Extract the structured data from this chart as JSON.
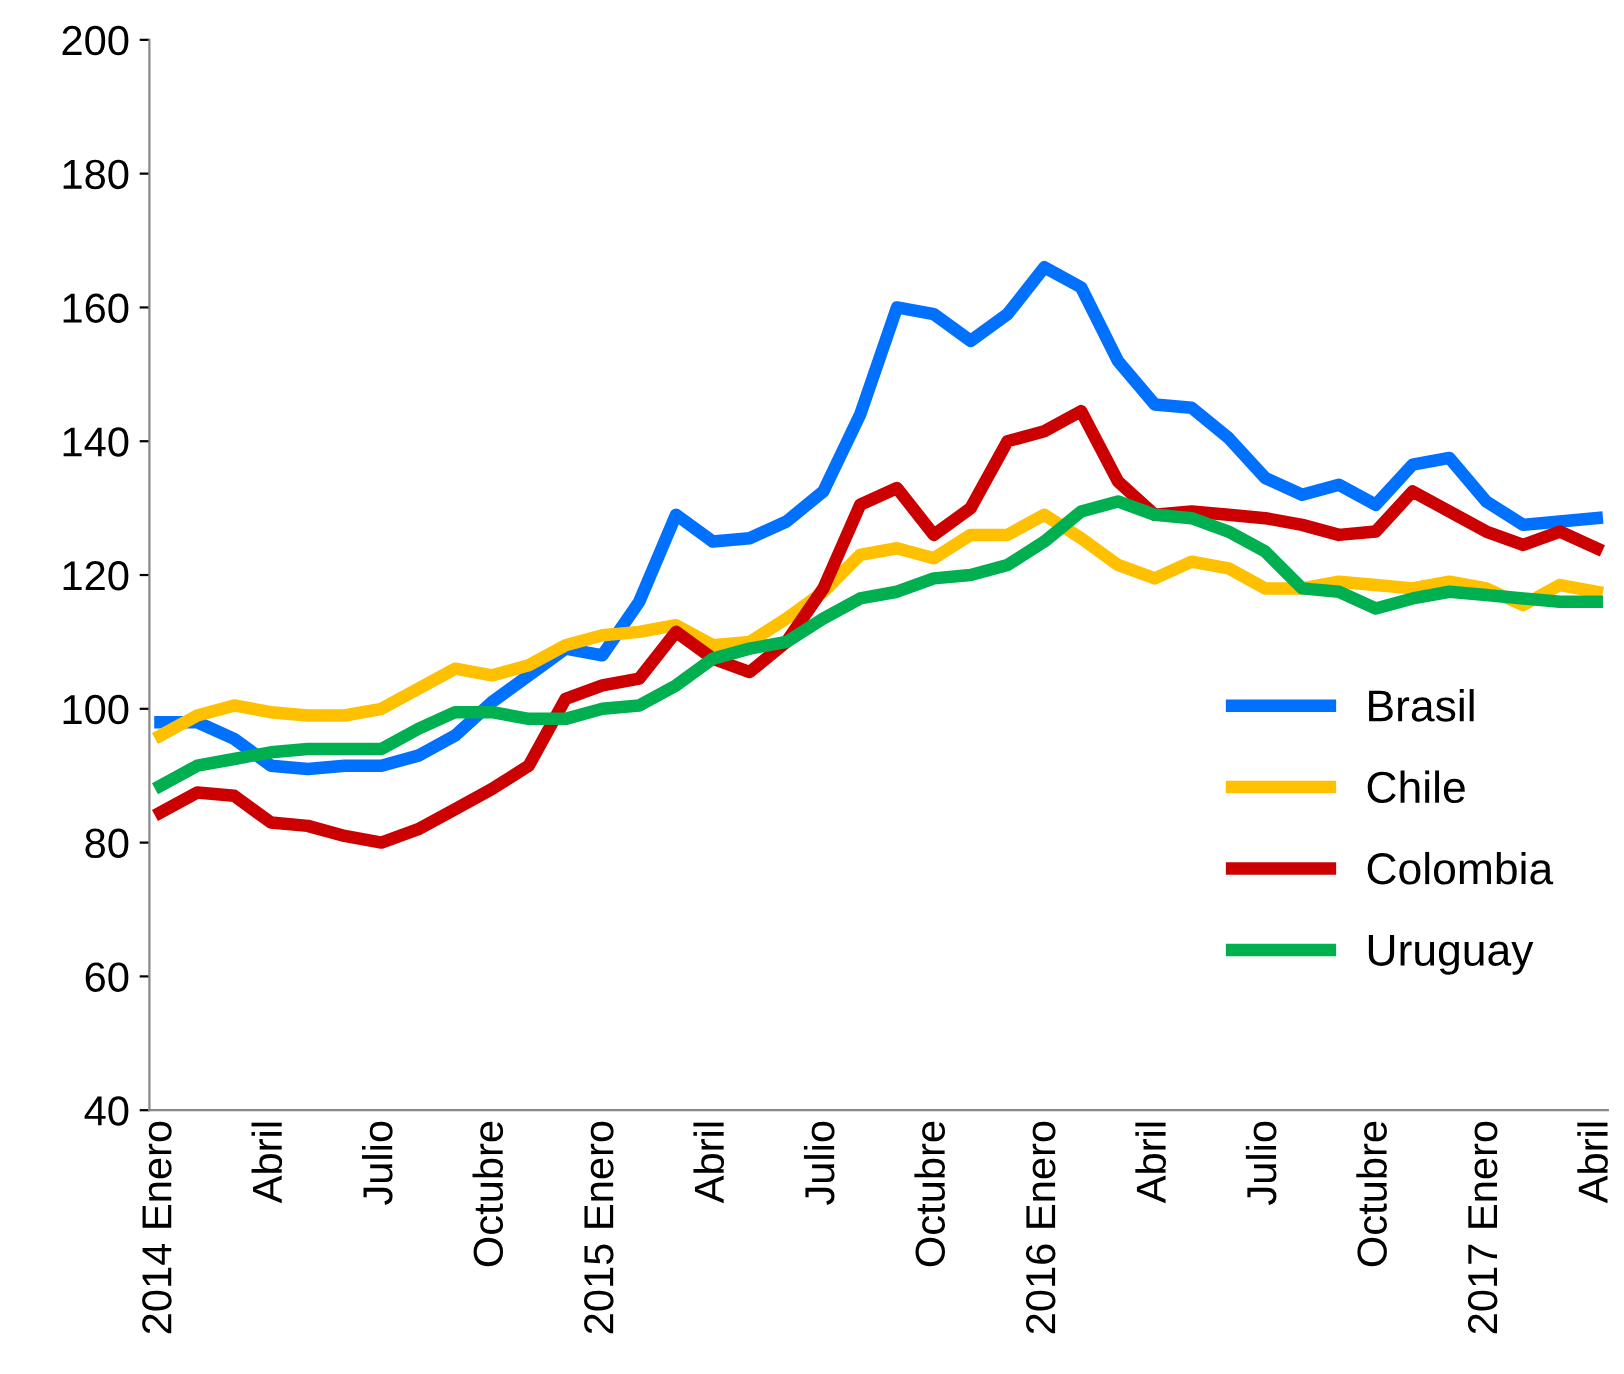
{
  "chart_data": {
    "type": "line",
    "categories": [
      "2014 Enero",
      null,
      null,
      "Abril",
      null,
      null,
      "Julio",
      null,
      null,
      "Octubre",
      null,
      null,
      "2015 Enero",
      null,
      null,
      "Abril",
      null,
      null,
      "Julio",
      null,
      null,
      "Octubre",
      null,
      null,
      "2016 Enero",
      null,
      null,
      "Abril",
      null,
      null,
      "Julio",
      null,
      null,
      "Octubre",
      null,
      null,
      "2017 Enero",
      null,
      null,
      "Abril"
    ],
    "ylim": [
      40,
      200
    ],
    "yticks": [
      40,
      60,
      80,
      100,
      120,
      140,
      160,
      180,
      200
    ],
    "grid": false,
    "legend": "right",
    "marker": "none",
    "line_style": "solid",
    "series": [
      {
        "name": "Brasil",
        "color": "#0070ff",
        "values": [
          98,
          98,
          95.5,
          91.5,
          91,
          91.5,
          91.5,
          93,
          96,
          101,
          105,
          109,
          108,
          116,
          129,
          125,
          125.5,
          128,
          132.5,
          144,
          160,
          159,
          155,
          159,
          166,
          163,
          152,
          145.5,
          145,
          140.5,
          134.5,
          132,
          133.5,
          130.5,
          136.5,
          137.5,
          131,
          127.5,
          128,
          128.5
        ]
      },
      {
        "name": "Chile",
        "color": "#ffc000",
        "values": [
          96,
          99,
          100.5,
          99.5,
          99,
          99,
          100,
          103,
          106,
          105,
          106.5,
          109.5,
          111,
          111.5,
          112.5,
          109.5,
          110,
          113.5,
          117.5,
          123,
          124,
          122.5,
          126,
          126,
          129,
          125.5,
          121.5,
          119.5,
          122,
          121,
          118,
          118,
          119,
          118.5,
          118,
          119,
          118,
          115.5,
          118.5,
          117.5
        ]
      },
      {
        "name": "Colombia",
        "color": "#cc0000",
        "values": [
          84.5,
          87.5,
          87,
          83,
          82.5,
          81,
          80,
          82,
          85,
          88,
          91.5,
          101.5,
          103.5,
          104.5,
          111.5,
          107.5,
          105.5,
          110,
          118,
          130.5,
          133,
          126,
          130,
          140,
          141.5,
          144.5,
          134,
          129,
          129.5,
          129,
          128.5,
          127.5,
          126,
          126.5,
          132.5,
          129.5,
          126.5,
          124.5,
          126.5,
          124
        ]
      },
      {
        "name": "Uruguay",
        "color": "#00b050",
        "values": [
          88.5,
          91.5,
          92.5,
          93.5,
          94,
          94,
          94,
          97,
          99.5,
          99.5,
          98.5,
          98.5,
          100,
          100.5,
          103.5,
          107.5,
          109,
          110,
          113.5,
          116.5,
          117.5,
          119.5,
          120,
          121.5,
          125,
          129.5,
          131,
          129,
          128.5,
          126.5,
          123.5,
          118,
          117.5,
          115,
          116.5,
          117.5,
          117,
          116.5,
          116,
          116
        ]
      }
    ]
  }
}
